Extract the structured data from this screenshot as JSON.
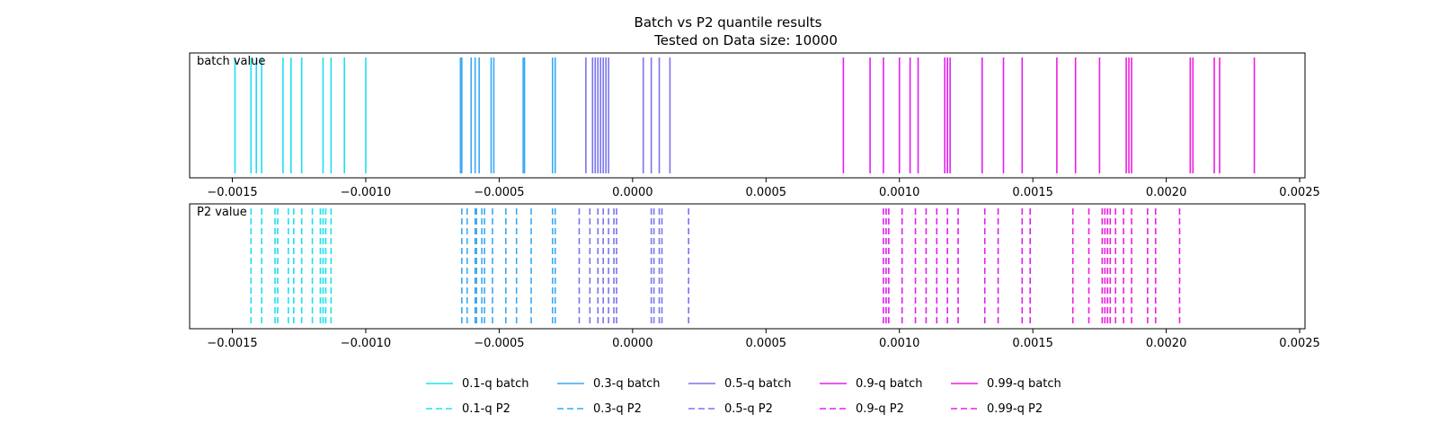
{
  "title": "Batch vs P2 quantile results",
  "subtitle": "Tested on Data size: 10000",
  "colors": {
    "q01": "#1ee0f0",
    "q03": "#3aa8f5",
    "q05": "#7a74ee",
    "q09": "#e21ef5",
    "q099": "#ee1ee0"
  },
  "legend": {
    "row1": [
      "0.1-q batch",
      "0.3-q batch",
      "0.5-q batch",
      "0.9-q batch",
      "0.99-q batch"
    ],
    "row2": [
      "0.1-q P2",
      "0.3-q P2",
      "0.5-q P2",
      "0.9-q P2",
      "0.99-q P2"
    ]
  },
  "chart_data": [
    {
      "type": "eventplot",
      "panel_label": "batch value",
      "xlim": [
        -0.00166,
        0.00252
      ],
      "xticks": [
        -0.0015,
        -0.001,
        -0.0005,
        0.0,
        0.0005,
        0.001,
        0.0015,
        0.002,
        0.0025
      ],
      "xtick_labels": [
        "−0.0015",
        "−0.0010",
        "−0.0005",
        "0.0000",
        "0.0005",
        "0.0010",
        "0.0015",
        "0.0020",
        "0.0025"
      ],
      "line_style": "solid",
      "series": [
        {
          "name": "0.1-q batch",
          "color_key": "q01",
          "values": [
            -0.00149,
            -0.00143,
            -0.00141,
            -0.00139,
            -0.00131,
            -0.00128,
            -0.00124,
            -0.00116,
            -0.00113,
            -0.00108,
            -0.001
          ]
        },
        {
          "name": "0.3-q batch",
          "color_key": "q03",
          "values": [
            -0.000645,
            -0.00064,
            -0.000605,
            -0.00059,
            -0.000575,
            -0.00053,
            -0.00052,
            -0.00041,
            -0.000405,
            -0.0003,
            -0.00029
          ]
        },
        {
          "name": "0.5-q batch",
          "color_key": "q05",
          "values": [
            -0.000175,
            -0.00015,
            -0.00014,
            -0.00013,
            -0.00012,
            -0.00011,
            -0.0001,
            -9e-05,
            4e-05,
            7e-05,
            0.0001,
            0.00014
          ]
        },
        {
          "name": "0.9-q batch",
          "color_key": "q09",
          "values": [
            0.00079,
            0.00089,
            0.00094,
            0.001,
            0.00104,
            0.00107,
            0.00117,
            0.00118,
            0.00119,
            0.00131,
            0.00139,
            0.00146
          ]
        },
        {
          "name": "0.99-q batch",
          "color_key": "q099",
          "values": [
            0.00159,
            0.00166,
            0.00175,
            0.00185,
            0.00186,
            0.00187,
            0.00209,
            0.0021,
            0.00218,
            0.0022,
            0.00233
          ]
        }
      ]
    },
    {
      "type": "eventplot",
      "panel_label": "P2 value",
      "xlim": [
        -0.00166,
        0.00252
      ],
      "xticks": [
        -0.0015,
        -0.001,
        -0.0005,
        0.0,
        0.0005,
        0.001,
        0.0015,
        0.002,
        0.0025
      ],
      "xtick_labels": [
        "−0.0015",
        "−0.0010",
        "−0.0005",
        "0.0000",
        "0.0005",
        "0.0010",
        "0.0015",
        "0.0020",
        "0.0025"
      ],
      "line_style": "dashed",
      "series": [
        {
          "name": "0.1-q P2",
          "color_key": "q01",
          "values": [
            -0.00143,
            -0.00139,
            -0.00134,
            -0.00133,
            -0.00129,
            -0.00127,
            -0.00124,
            -0.0012,
            -0.00117,
            -0.00116,
            -0.00115,
            -0.00113
          ]
        },
        {
          "name": "0.3-q P2",
          "color_key": "q03",
          "values": [
            -0.00064,
            -0.00062,
            -0.00059,
            -0.000585,
            -0.000565,
            -0.000555,
            -0.000525,
            -0.000475,
            -0.000435,
            -0.00038,
            -0.0003,
            -0.00029
          ]
        },
        {
          "name": "0.5-q P2",
          "color_key": "q05",
          "values": [
            -0.0002,
            -0.00016,
            -0.00013,
            -0.00011,
            -9e-05,
            -7e-05,
            -6e-05,
            7e-05,
            8e-05,
            0.0001,
            0.00011,
            0.00021
          ]
        },
        {
          "name": "0.9-q P2",
          "color_key": "q09",
          "values": [
            0.00094,
            0.00095,
            0.00096,
            0.00101,
            0.00106,
            0.0011,
            0.00114,
            0.00118,
            0.00122,
            0.00132,
            0.00137,
            0.00146,
            0.00149
          ]
        },
        {
          "name": "0.99-q P2",
          "color_key": "q099",
          "values": [
            0.00165,
            0.00171,
            0.00176,
            0.00177,
            0.00178,
            0.00179,
            0.00181,
            0.00184,
            0.00187,
            0.00193,
            0.00196,
            0.00205
          ]
        }
      ]
    }
  ]
}
